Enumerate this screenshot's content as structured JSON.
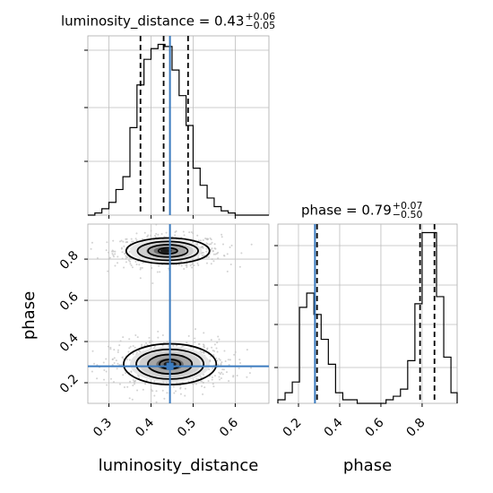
{
  "chart_data": {
    "type": "corner",
    "truth_color": "#3b7bbf",
    "hist_color": "#000000",
    "parameters": [
      {
        "name": "luminosity_distance",
        "title": {
          "base": "luminosity_distance = 0.43",
          "plus": "+0.06",
          "minus": "−0.05"
        },
        "truth": 0.445,
        "quantiles": [
          0.375,
          0.43,
          0.488
        ],
        "range": [
          0.25,
          0.68
        ],
        "ticks": [
          "0.3",
          "0.4",
          "0.5",
          "0.6"
        ],
        "hist": {
          "bins": [
            0.25,
            0.2667,
            0.2833,
            0.3,
            0.3167,
            0.3333,
            0.35,
            0.3667,
            0.3833,
            0.4,
            0.4167,
            0.4333,
            0.45,
            0.4667,
            0.4833,
            0.5,
            0.5167,
            0.5333,
            0.55,
            0.5667,
            0.5833,
            0.6,
            0.6167,
            0.6333,
            0.65,
            0.6667,
            0.68
          ],
          "counts": [
            0,
            1,
            3,
            6,
            12,
            18,
            41,
            61,
            73,
            78,
            80,
            79,
            68,
            56,
            42,
            22,
            14,
            8,
            4,
            2,
            1,
            0,
            0,
            0,
            0,
            0
          ]
        }
      },
      {
        "name": "phase",
        "title": {
          "base": "phase = 0.79",
          "plus": "+0.07",
          "minus": "−0.50"
        },
        "truth": 0.28,
        "quantiles": [
          0.29,
          0.79,
          0.86
        ],
        "range": [
          0.1,
          0.97
        ],
        "ticks": [
          "0.2",
          "0.4",
          "0.6",
          "0.8"
        ],
        "hist": {
          "bins": [
            0.1,
            0.135,
            0.17,
            0.205,
            0.24,
            0.275,
            0.31,
            0.345,
            0.38,
            0.415,
            0.45,
            0.485,
            0.52,
            0.555,
            0.59,
            0.625,
            0.66,
            0.695,
            0.73,
            0.765,
            0.8,
            0.835,
            0.87,
            0.905,
            0.94,
            0.97
          ],
          "counts": [
            1,
            3,
            6,
            27,
            31,
            25,
            18,
            11,
            3,
            1,
            1,
            0,
            0,
            0,
            0,
            1,
            2,
            4,
            12,
            28,
            48,
            48,
            30,
            13,
            3
          ]
        }
      }
    ],
    "joint": {
      "modes": [
        {
          "x": 0.44,
          "y": 0.84,
          "sx": 0.045,
          "sy": 0.03
        },
        {
          "x": 0.445,
          "y": 0.29,
          "sx": 0.05,
          "sy": 0.045
        }
      ]
    }
  }
}
